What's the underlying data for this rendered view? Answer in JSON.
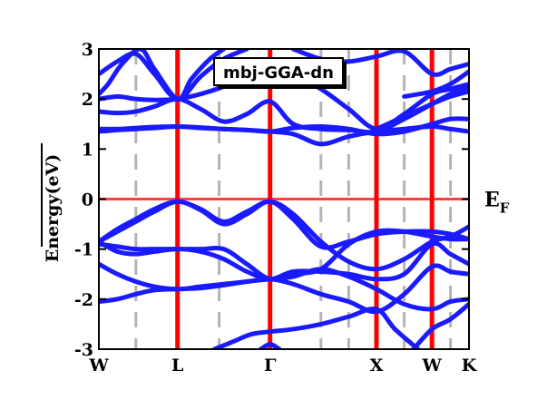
{
  "chart_data": {
    "type": "line",
    "title": "",
    "legend": "mbj-GGA-dn",
    "legend_position": "top-center",
    "ylabel": "Energy(eV)",
    "xlabel": "",
    "ylim": [
      -3,
      3
    ],
    "xlim": [
      0,
      4.0
    ],
    "y_ticks": [
      -3,
      -2,
      -1,
      0,
      1,
      2,
      3
    ],
    "y_tick_labels": [
      "-3",
      "-2",
      "-1",
      "0",
      "1",
      "2",
      "3"
    ],
    "k_points": [
      {
        "label": "W",
        "x": 0.0
      },
      {
        "label": "L",
        "x": 0.85
      },
      {
        "label": "Γ",
        "x": 1.85
      },
      {
        "label": "X",
        "x": 3.0
      },
      {
        "label": "W",
        "x": 3.6
      },
      {
        "label": "K",
        "x": 4.0
      }
    ],
    "fermi_level": {
      "label": "E",
      "subscript": "F",
      "value": 0
    },
    "dashed_gridlines_x": [
      0.4,
      1.3,
      2.4,
      2.7,
      3.3,
      3.8
    ],
    "colors": {
      "bands": "#1a1aff",
      "symmetry_lines": "#ff0000",
      "fermi_line": "#ff4040",
      "gridlines": "#b4b4b4"
    },
    "series": [
      {
        "x": [
          0,
          0.2,
          0.4,
          0.6,
          0.85,
          1.1,
          1.35,
          1.6,
          1.85,
          2.1,
          2.4,
          2.7,
          3.0,
          3.3,
          3.6,
          3.8,
          4.0
        ],
        "y": [
          -0.85,
          -0.6,
          -0.4,
          -0.2,
          -0.05,
          -0.2,
          -0.45,
          -0.25,
          -0.05,
          -0.3,
          -0.85,
          -1.25,
          -1.4,
          -1.2,
          -0.85,
          -0.75,
          -0.55
        ]
      },
      {
        "x": [
          0,
          0.2,
          0.4,
          0.6,
          0.85,
          1.1,
          1.35,
          1.6,
          1.85,
          2.1,
          2.4,
          2.7,
          3.0,
          3.3,
          3.6,
          3.8,
          4.0
        ],
        "y": [
          -0.85,
          -0.65,
          -0.45,
          -0.25,
          -0.05,
          -0.22,
          -0.5,
          -0.3,
          -0.05,
          -0.4,
          -0.95,
          -0.85,
          -0.7,
          -0.65,
          -0.65,
          -0.7,
          -0.8
        ]
      },
      {
        "x": [
          0,
          0.2,
          0.4,
          0.6,
          0.85,
          1.1,
          1.35,
          1.6,
          1.85,
          2.1,
          2.4,
          2.7,
          3.0,
          3.3,
          3.6,
          3.8,
          4.0
        ],
        "y": [
          -0.9,
          -0.95,
          -1.0,
          -1.0,
          -1.0,
          -1.0,
          -1.0,
          -1.3,
          -1.6,
          -1.5,
          -1.4,
          -0.9,
          -0.65,
          -0.65,
          -0.75,
          -0.8,
          -0.8
        ]
      },
      {
        "x": [
          0,
          0.2,
          0.4,
          0.6,
          0.85,
          1.1,
          1.35,
          1.6,
          1.85,
          2.1,
          2.4,
          2.7,
          3.0,
          3.3,
          3.6,
          3.8,
          4.0
        ],
        "y": [
          -0.85,
          -1.05,
          -1.1,
          -1.05,
          -1.0,
          -1.05,
          -1.2,
          -1.45,
          -1.6,
          -1.45,
          -1.45,
          -1.5,
          -1.6,
          -1.5,
          -0.9,
          -1.1,
          -1.3
        ]
      },
      {
        "x": [
          0,
          0.2,
          0.4,
          0.6,
          0.85,
          1.1,
          1.35,
          1.6,
          1.85,
          2.1,
          2.4,
          2.7,
          3.0,
          3.3,
          3.6,
          3.8,
          4.0
        ],
        "y": [
          -1.3,
          -1.5,
          -1.65,
          -1.75,
          -1.8,
          -1.75,
          -1.7,
          -1.65,
          -1.6,
          -1.7,
          -1.9,
          -2.05,
          -2.25,
          -1.9,
          -1.35,
          -1.45,
          -1.5
        ]
      },
      {
        "x": [
          0,
          0.2,
          0.4,
          0.6,
          0.85,
          1.1,
          1.35,
          1.6,
          1.85,
          2.1,
          2.4,
          2.7,
          3.0,
          3.3,
          3.6,
          3.8,
          4.0
        ],
        "y": [
          -2.05,
          -2.0,
          -1.9,
          -1.82,
          -1.8,
          -1.78,
          -1.72,
          -1.65,
          -1.6,
          -1.55,
          -1.4,
          -1.55,
          -1.8,
          -2.1,
          -2.2,
          -2.05,
          -2.0
        ]
      },
      {
        "x": [
          1.25,
          1.45,
          1.65,
          1.85,
          2.1,
          2.4,
          2.7,
          3.0,
          3.2,
          3.45
        ],
        "y": [
          -3.0,
          -2.85,
          -2.7,
          -2.65,
          -2.6,
          -2.5,
          -2.35,
          -2.2,
          -2.6,
          -3.0
        ]
      },
      {
        "x": [
          1.75,
          1.85,
          1.95
        ],
        "y": [
          -3.0,
          -2.9,
          -3.0
        ]
      },
      {
        "x": [
          3.4,
          3.6,
          3.8,
          4.0
        ],
        "y": [
          -3.0,
          -2.6,
          -2.4,
          -2.1
        ]
      },
      {
        "x": [
          0,
          0.2,
          0.4,
          0.6,
          0.85,
          1.1,
          1.35,
          1.6,
          1.85,
          2.1,
          2.4,
          2.7,
          3.0,
          3.3,
          3.6,
          3.8,
          4.0
        ],
        "y": [
          1.35,
          1.38,
          1.4,
          1.42,
          1.45,
          1.42,
          1.4,
          1.38,
          1.35,
          1.3,
          1.1,
          1.25,
          1.35,
          1.4,
          1.45,
          1.4,
          1.35
        ]
      },
      {
        "x": [
          0,
          0.2,
          0.4,
          0.6,
          0.85,
          1.1,
          1.35,
          1.6,
          1.85,
          2.1,
          2.4,
          2.7,
          3.0,
          3.3,
          3.6,
          3.8,
          4.0
        ],
        "y": [
          1.4,
          1.4,
          1.42,
          1.44,
          1.45,
          1.43,
          1.4,
          1.38,
          1.35,
          1.42,
          1.45,
          1.4,
          1.3,
          1.35,
          1.5,
          1.6,
          1.6
        ]
      },
      {
        "x": [
          0,
          0.2,
          0.4,
          0.6,
          0.85,
          1.1,
          1.35,
          1.6,
          1.85,
          2.1,
          2.4,
          2.7,
          3.0,
          3.3,
          3.6,
          3.8,
          4.0
        ],
        "y": [
          1.75,
          1.72,
          1.75,
          1.85,
          2.0,
          1.8,
          1.55,
          1.7,
          1.95,
          1.5,
          1.4,
          1.38,
          1.35,
          1.6,
          1.9,
          2.1,
          2.25
        ]
      },
      {
        "x": [
          0,
          0.2,
          0.4,
          0.6,
          0.85,
          1.1,
          1.35,
          1.6,
          1.85,
          2.1,
          2.4,
          2.7,
          3.0,
          3.3,
          3.6,
          3.8,
          4.0
        ],
        "y": [
          2.0,
          2.05,
          2.0,
          1.98,
          2.0,
          2.1,
          2.25,
          2.45,
          2.75,
          2.5,
          2.2,
          1.8,
          1.4,
          1.7,
          2.1,
          2.2,
          2.3
        ]
      },
      {
        "x": [
          0,
          0.2,
          0.4,
          0.6,
          0.85,
          1.1,
          1.35,
          1.6
        ],
        "y": [
          2.5,
          2.75,
          2.9,
          2.5,
          2.0,
          2.45,
          2.8,
          3.0
        ]
      },
      {
        "x": [
          0,
          0.1,
          0.25,
          0.45,
          0.6,
          0.85,
          1.0,
          1.2,
          1.35
        ],
        "y": [
          2.1,
          2.3,
          2.7,
          3.0,
          2.6,
          2.0,
          2.4,
          2.8,
          3.0
        ]
      },
      {
        "x": [
          2.1,
          2.4,
          2.7,
          3.0,
          3.3,
          3.6,
          3.8,
          4.0
        ],
        "y": [
          3.0,
          2.8,
          2.75,
          2.85,
          2.95,
          2.5,
          2.6,
          2.7
        ]
      },
      {
        "x": [
          3.3,
          3.6,
          3.8,
          4.0
        ],
        "y": [
          2.05,
          2.15,
          2.3,
          2.55
        ]
      },
      {
        "x": [
          3.0,
          3.3,
          3.6,
          3.8,
          4.0
        ],
        "y": [
          1.4,
          1.65,
          1.9,
          2.05,
          2.15
        ]
      }
    ]
  }
}
